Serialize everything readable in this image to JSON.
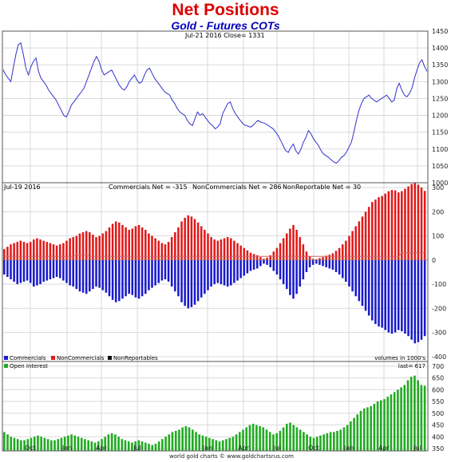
{
  "header": {
    "title": "Net Positions",
    "subtitle": "Gold - Futures COTs"
  },
  "colors": {
    "title": "#dd0000",
    "subtitle": "#0000bb",
    "price_line": "#3333cc",
    "commercials": "#1a1acc",
    "noncommercials": "#e01a1a",
    "nonreportables": "#111111",
    "nonreportables_line": "#cc6666",
    "open_interest": "#22aa22",
    "grid": "#d9d9d9",
    "frame": "#555555"
  },
  "footer": {
    "credit": "world gold charts © www.goldchartsrus.com"
  },
  "chart_data": [
    {
      "type": "line",
      "title": "",
      "info": "Jul-21  2016   Close= 1331",
      "series": [
        {
          "values": [
            1335,
            1320,
            1310,
            1300,
            1340,
            1380,
            1410,
            1415,
            1380,
            1340,
            1320,
            1345,
            1360,
            1370,
            1330,
            1310,
            1300,
            1290,
            1275,
            1265,
            1255,
            1245,
            1230,
            1215,
            1200,
            1195,
            1210,
            1230,
            1240,
            1250,
            1260,
            1270,
            1280,
            1300,
            1320,
            1340,
            1360,
            1375,
            1360,
            1335,
            1320,
            1325,
            1330,
            1335,
            1320,
            1305,
            1290,
            1280,
            1275,
            1285,
            1300,
            1310,
            1320,
            1305,
            1295,
            1300,
            1320,
            1335,
            1340,
            1325,
            1310,
            1300,
            1290,
            1280,
            1270,
            1265,
            1260,
            1245,
            1235,
            1220,
            1210,
            1205,
            1200,
            1185,
            1175,
            1170,
            1190,
            1210,
            1200,
            1205,
            1195,
            1185,
            1175,
            1170,
            1160,
            1165,
            1175,
            1205,
            1220,
            1235,
            1240,
            1220,
            1205,
            1195,
            1185,
            1175,
            1170,
            1168,
            1165,
            1170,
            1178,
            1185,
            1180,
            1178,
            1175,
            1170,
            1165,
            1160,
            1150,
            1140,
            1125,
            1110,
            1095,
            1090,
            1105,
            1115,
            1095,
            1085,
            1100,
            1120,
            1135,
            1155,
            1145,
            1130,
            1120,
            1110,
            1095,
            1085,
            1080,
            1075,
            1068,
            1062,
            1058,
            1065,
            1075,
            1080,
            1090,
            1105,
            1120,
            1150,
            1185,
            1215,
            1235,
            1250,
            1255,
            1260,
            1250,
            1245,
            1240,
            1245,
            1250,
            1255,
            1260,
            1250,
            1240,
            1245,
            1280,
            1295,
            1275,
            1260,
            1255,
            1265,
            1280,
            1310,
            1335,
            1355,
            1365,
            1345,
            1331
          ]
        }
      ],
      "x_ticks": [
        "Oct",
        "Jan",
        "Apr",
        "Jul",
        "Jan",
        "Apr",
        "Jul",
        "Oct",
        "Jan",
        "Apr",
        "Jul"
      ],
      "y_ticks": [
        "1450",
        "1400",
        "1350",
        "1300",
        "1250",
        "1200",
        "1150",
        "1100",
        "1050",
        "1000"
      ],
      "ylim": [
        1000,
        1450
      ]
    },
    {
      "type": "bar",
      "info": "Jul-19  2016",
      "info_commercials": "Commercials Net = -315",
      "info_noncommercials": "NonCommercials Net = 286",
      "info_nonreportables": "NonReportable Net = 30",
      "units": "volumes in 1000's",
      "series": [
        {
          "name": "Commercials",
          "values": [
            -60,
            -70,
            -80,
            -90,
            -100,
            -95,
            -90,
            -85,
            -95,
            -110,
            -105,
            -100,
            -90,
            -85,
            -80,
            -75,
            -70,
            -75,
            -85,
            -95,
            -105,
            -110,
            -120,
            -130,
            -135,
            -140,
            -130,
            -120,
            -110,
            -115,
            -125,
            -135,
            -150,
            -165,
            -175,
            -170,
            -160,
            -150,
            -140,
            -145,
            -155,
            -160,
            -150,
            -140,
            -125,
            -115,
            -105,
            -95,
            -85,
            -80,
            -90,
            -110,
            -130,
            -150,
            -175,
            -190,
            -200,
            -195,
            -185,
            -170,
            -155,
            -140,
            -125,
            -110,
            -100,
            -95,
            -100,
            -105,
            -110,
            -105,
            -95,
            -85,
            -75,
            -65,
            -55,
            -45,
            -40,
            -35,
            -25,
            -15,
            -20,
            -30,
            -45,
            -60,
            -80,
            -100,
            -120,
            -145,
            -160,
            -140,
            -110,
            -80,
            -50,
            -30,
            -20,
            -15,
            -20,
            -25,
            -30,
            -35,
            -40,
            -50,
            -60,
            -75,
            -90,
            -110,
            -130,
            -150,
            -170,
            -190,
            -210,
            -230,
            -250,
            -265,
            -275,
            -280,
            -290,
            -300,
            -305,
            -300,
            -290,
            -295,
            -305,
            -315,
            -330,
            -345,
            -340,
            -330,
            -315
          ]
        },
        {
          "name": "NonCommercials",
          "values": [
            45,
            55,
            65,
            70,
            75,
            80,
            75,
            70,
            75,
            85,
            90,
            85,
            80,
            75,
            70,
            65,
            60,
            65,
            70,
            80,
            90,
            95,
            100,
            110,
            115,
            120,
            115,
            105,
            95,
            100,
            110,
            120,
            135,
            150,
            160,
            155,
            145,
            135,
            125,
            130,
            140,
            145,
            135,
            125,
            110,
            100,
            90,
            80,
            70,
            65,
            75,
            95,
            115,
            135,
            160,
            175,
            185,
            180,
            170,
            155,
            140,
            125,
            110,
            95,
            85,
            80,
            85,
            90,
            95,
            90,
            80,
            70,
            60,
            50,
            40,
            30,
            25,
            20,
            12,
            5,
            10,
            20,
            35,
            50,
            70,
            90,
            110,
            130,
            145,
            125,
            95,
            65,
            35,
            15,
            5,
            3,
            8,
            12,
            18,
            22,
            28,
            38,
            50,
            65,
            80,
            100,
            120,
            140,
            160,
            180,
            200,
            220,
            240,
            250,
            260,
            265,
            275,
            285,
            290,
            288,
            280,
            285,
            295,
            305,
            315,
            320,
            312,
            300,
            286
          ]
        },
        {
          "name": "NonReportables",
          "values": [
            15,
            15,
            15,
            15,
            15,
            15,
            15,
            15,
            15,
            15,
            15,
            15,
            15,
            15,
            15,
            15,
            15,
            15,
            15,
            15,
            15,
            15,
            20,
            20,
            20,
            20,
            15,
            15,
            15,
            15,
            15,
            15,
            15,
            15,
            15,
            15,
            15,
            15,
            15,
            15,
            15,
            15,
            15,
            15,
            15,
            15,
            15,
            15,
            15,
            15,
            15,
            15,
            15,
            15,
            15,
            15,
            15,
            15,
            15,
            15,
            15,
            15,
            15,
            15,
            15,
            15,
            15,
            15,
            15,
            15,
            15,
            15,
            15,
            15,
            15,
            15,
            15,
            15,
            15,
            15,
            15,
            15,
            15,
            15,
            15,
            15,
            15,
            15,
            15,
            15,
            15,
            15,
            15,
            15,
            15,
            15,
            15,
            15,
            15,
            15,
            15,
            15,
            15,
            15,
            15,
            15,
            15,
            15,
            15,
            15,
            15,
            15,
            15,
            15,
            15,
            15,
            15,
            15,
            15,
            15,
            15,
            30,
            30,
            30,
            30,
            30,
            30,
            30,
            30
          ]
        }
      ],
      "legend": [
        "Commercials",
        "NonCommercials",
        "NonReportables"
      ],
      "y_ticks": [
        "300",
        "200",
        "100",
        "0",
        "-100",
        "-200",
        "-300",
        "-400"
      ],
      "ylim": [
        -420,
        320
      ]
    },
    {
      "type": "bar",
      "info": "last= 617",
      "series": [
        {
          "name": "Open Interest",
          "values": [
            420,
            410,
            400,
            395,
            390,
            385,
            385,
            390,
            395,
            400,
            405,
            400,
            395,
            390,
            385,
            385,
            390,
            395,
            400,
            405,
            410,
            405,
            400,
            395,
            390,
            385,
            380,
            375,
            380,
            390,
            400,
            410,
            415,
            410,
            400,
            390,
            385,
            380,
            375,
            380,
            385,
            380,
            375,
            370,
            365,
            370,
            380,
            390,
            400,
            410,
            420,
            425,
            430,
            440,
            445,
            440,
            430,
            420,
            410,
            405,
            400,
            395,
            390,
            385,
            380,
            385,
            390,
            395,
            400,
            410,
            420,
            430,
            440,
            450,
            455,
            450,
            445,
            440,
            430,
            420,
            410,
            415,
            425,
            440,
            455,
            460,
            450,
            440,
            430,
            420,
            410,
            400,
            395,
            400,
            405,
            410,
            415,
            420,
            420,
            425,
            430,
            440,
            450,
            465,
            480,
            495,
            510,
            520,
            525,
            530,
            540,
            550,
            555,
            560,
            570,
            580,
            590,
            600,
            610,
            620,
            640,
            655,
            660,
            640,
            620,
            617
          ]
        }
      ],
      "y_ticks": [
        "700",
        "650",
        "600",
        "550",
        "500",
        "450",
        "400",
        "350"
      ],
      "ylim": [
        340,
        720
      ]
    }
  ]
}
